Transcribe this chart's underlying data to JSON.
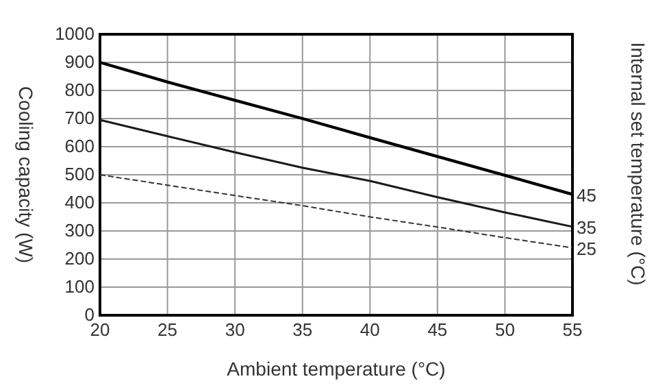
{
  "chart_data": {
    "type": "line",
    "xlabel": "Ambient temperature (°C)",
    "ylabel": "Cooling capacity (W)",
    "legend_title": "Internal set temperature (°C)",
    "x": [
      20,
      25,
      30,
      35,
      40,
      45,
      50,
      55
    ],
    "series": [
      {
        "name": "45",
        "color": "#000000",
        "values": [
          900,
          830,
          765,
          700,
          632,
          565,
          498,
          430
        ]
      },
      {
        "name": "35",
        "color": "#1a1a1a",
        "values": [
          695,
          637,
          580,
          525,
          478,
          420,
          366,
          315
        ]
      },
      {
        "name": "25",
        "color": "#333333",
        "line_style": "dashed",
        "values": [
          500,
          463,
          426,
          390,
          350,
          314,
          276,
          240
        ]
      }
    ],
    "xlim": [
      20,
      55
    ],
    "xticks": [
      20,
      25,
      30,
      35,
      40,
      45,
      50,
      55
    ],
    "ylim": [
      0,
      1000
    ],
    "yticks": [
      0,
      100,
      200,
      300,
      400,
      500,
      600,
      700,
      800,
      900,
      1000
    ],
    "grid": true,
    "line_style": "solid",
    "marker": "none",
    "legend": false
  }
}
